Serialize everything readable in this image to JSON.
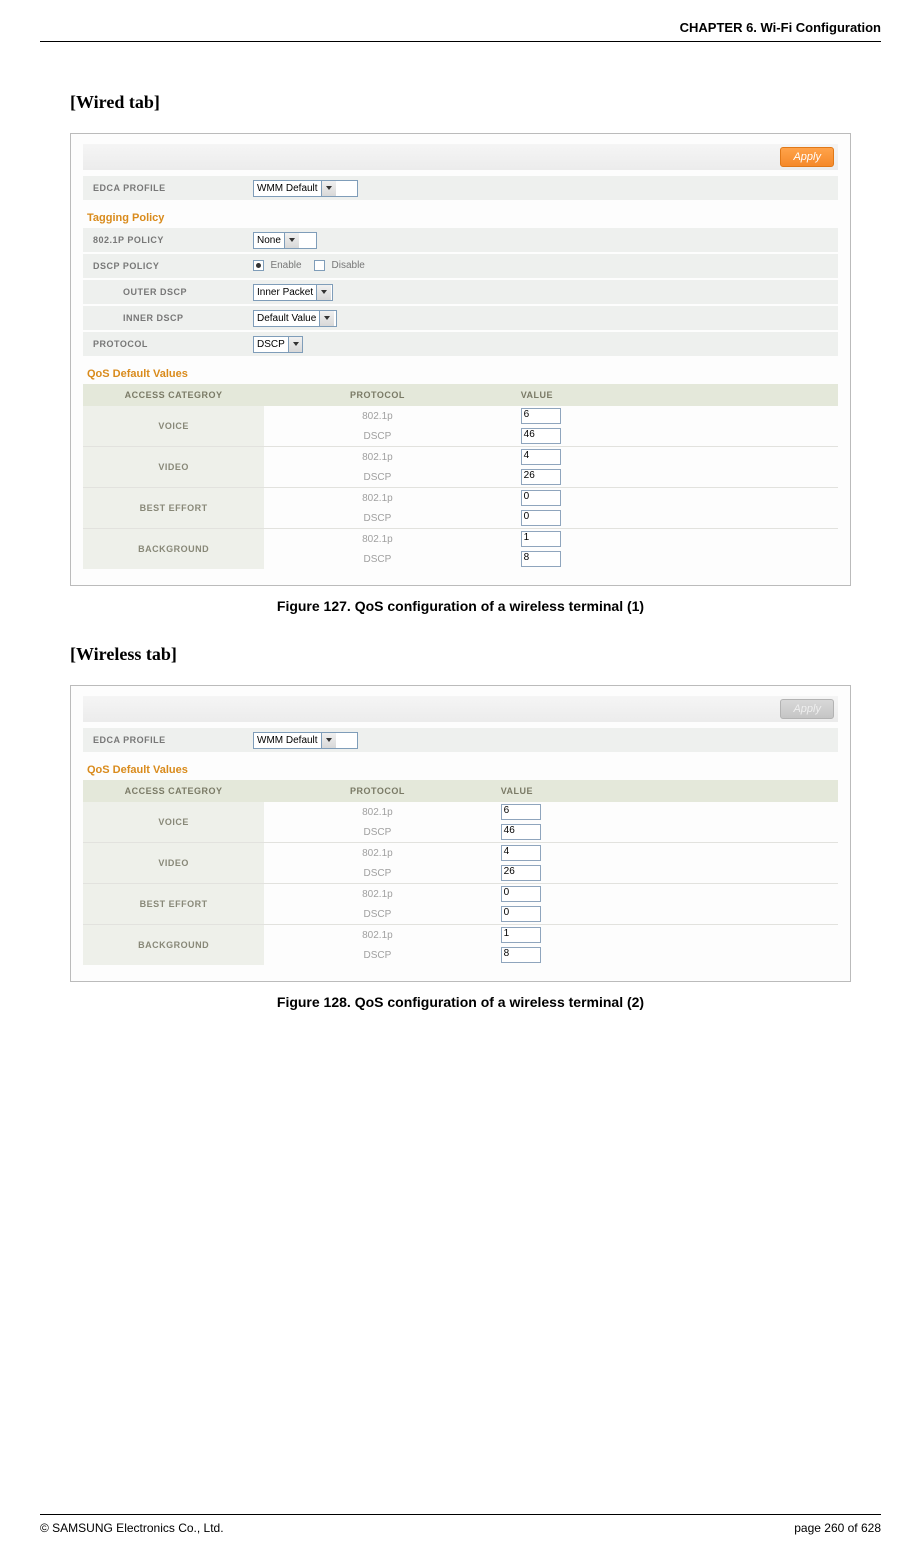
{
  "header": {
    "chapter": "CHAPTER 6. Wi-Fi Configuration"
  },
  "footer": {
    "copyright": "© SAMSUNG Electronics Co., Ltd.",
    "page": "page 260 of 628"
  },
  "captions": {
    "fig1": "Figure 127. QoS configuration of a wireless terminal (1)",
    "fig2": "Figure 128. QoS configuration of a wireless terminal (2)"
  },
  "titles": {
    "wired": "[Wired tab]",
    "wireless": "[Wireless tab]"
  },
  "labels": {
    "apply": "Apply",
    "edca_profile": "EDCA PROFILE",
    "tagging_policy": "Tagging Policy",
    "policy_8021p": "802.1P POLICY",
    "dscp_policy": "DSCP POLICY",
    "outer_dscp": "OUTER DSCP",
    "inner_dscp": "INNER DSCP",
    "protocol": "PROTOCOL",
    "enable": "Enable",
    "disable": "Disable",
    "qos_defaults": "QoS Default Values",
    "col_cat": "ACCESS CATEGROY",
    "col_proto": "PROTOCOL",
    "col_val": "VALUE"
  },
  "values": {
    "edca_profile_sel": "WMM Default",
    "policy_8021p_sel": "None",
    "outer_dscp_sel": "Inner Packet",
    "inner_dscp_sel": "Default Value",
    "protocol_sel": "DSCP"
  },
  "qos": {
    "categories": [
      "VOICE",
      "VIDEO",
      "BEST EFFORT",
      "BACKGROUND"
    ],
    "protocols": [
      "802.1p",
      "DSCP"
    ],
    "wired_values": [
      [
        "6",
        "46"
      ],
      [
        "4",
        "26"
      ],
      [
        "0",
        "0"
      ],
      [
        "1",
        "8"
      ]
    ],
    "wireless_values": [
      [
        "6",
        "46"
      ],
      [
        "4",
        "26"
      ],
      [
        "0",
        "0"
      ],
      [
        "1",
        "8"
      ]
    ]
  },
  "style": {
    "accent": "#d98b1c",
    "header_bg": "#e4e8da",
    "row_bg": "#eef0ee",
    "cat_bg": "#eef0ea",
    "label_color": "#777777",
    "proto_color": "#a0a0a0",
    "border": "#bbbbbb",
    "apply_enabled_bg": "#f5892a",
    "apply_disabled_bg": "#c5c5c5",
    "select_widths": {
      "edca": 90,
      "none": 50,
      "inner_packet": 64,
      "default_value": 68,
      "dscp": 34
    }
  }
}
